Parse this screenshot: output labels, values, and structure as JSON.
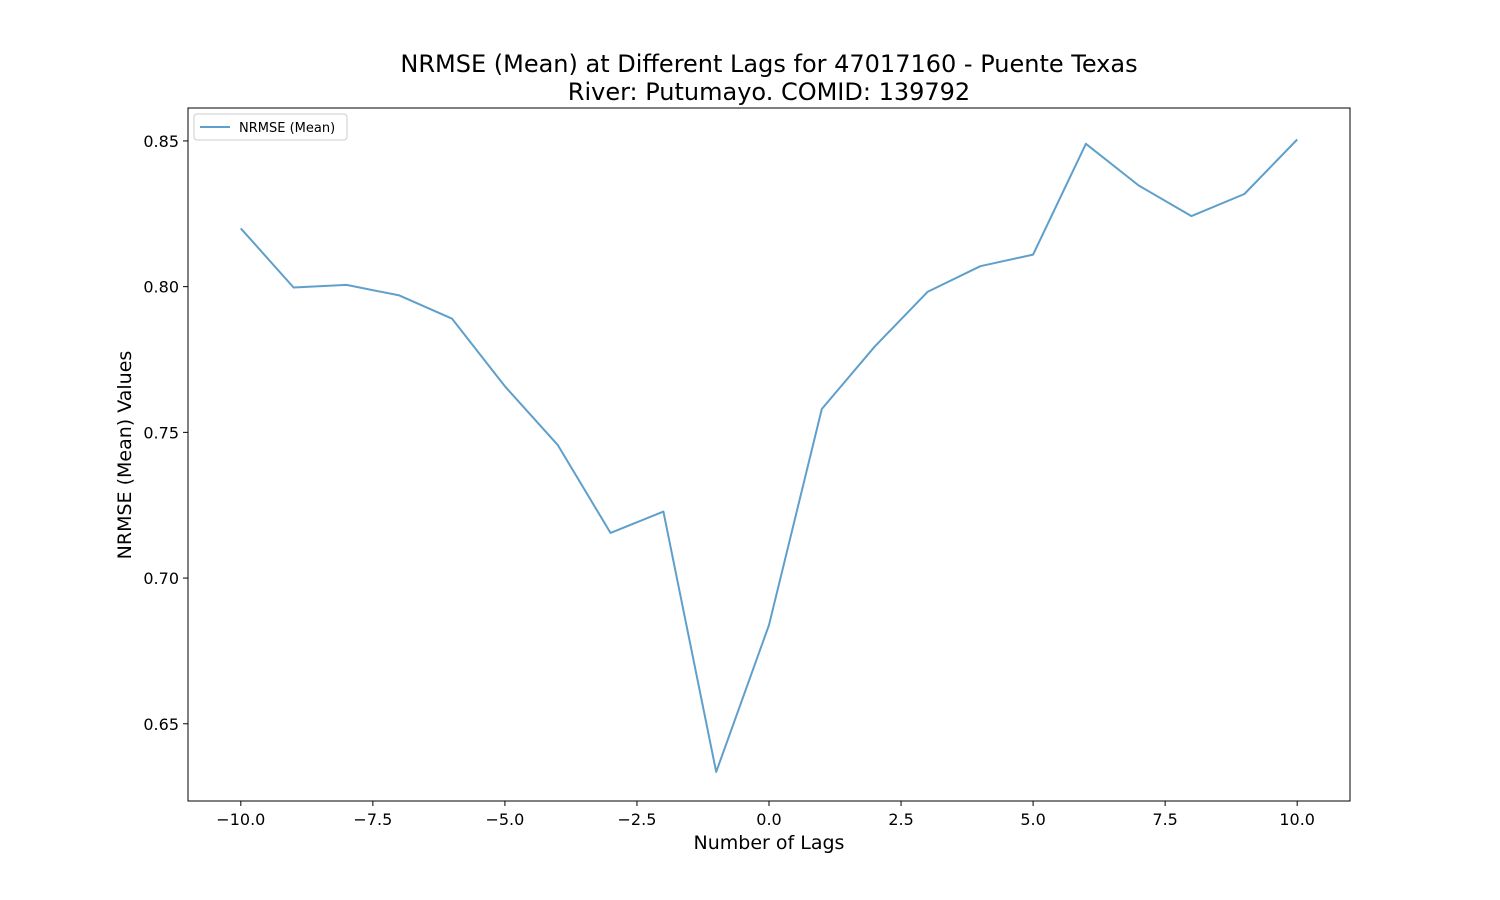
{
  "chart_data": {
    "type": "line",
    "title_line1": "NRMSE (Mean) at Different Lags for 47017160 - Puente Texas",
    "title_line2": "River: Putumayo. COMID: 139792",
    "xlabel": "Number of Lags",
    "ylabel": "NRMSE (Mean) Values",
    "xlim": [
      -11,
      11
    ],
    "ylim": [
      0.6235,
      0.8613
    ],
    "xticks": [
      -10.0,
      -7.5,
      -5.0,
      -2.5,
      0.0,
      2.5,
      5.0,
      7.5,
      10.0
    ],
    "xtick_labels": [
      "−10.0",
      "−7.5",
      "−5.0",
      "−2.5",
      "0.0",
      "2.5",
      "5.0",
      "7.5",
      "10.0"
    ],
    "yticks": [
      0.65,
      0.7,
      0.75,
      0.8,
      0.85
    ],
    "ytick_labels": [
      "0.65",
      "0.70",
      "0.75",
      "0.80",
      "0.85"
    ],
    "grid": false,
    "legend_position": "top-left",
    "series": [
      {
        "name": "NRMSE (Mean)",
        "color": "#5f9fcb",
        "x": [
          -10,
          -9,
          -8,
          -7,
          -6,
          -5,
          -4,
          -3,
          -2,
          -1,
          0,
          1,
          2,
          3,
          4,
          5,
          6,
          7,
          8,
          9,
          10
        ],
        "values": [
          0.82,
          0.7997,
          0.8006,
          0.797,
          0.789,
          0.7658,
          0.7457,
          0.7155,
          0.7228,
          0.6335,
          0.6839,
          0.758,
          0.7794,
          0.7982,
          0.807,
          0.811,
          0.849,
          0.8347,
          0.8242,
          0.8318,
          0.8505
        ]
      }
    ]
  }
}
